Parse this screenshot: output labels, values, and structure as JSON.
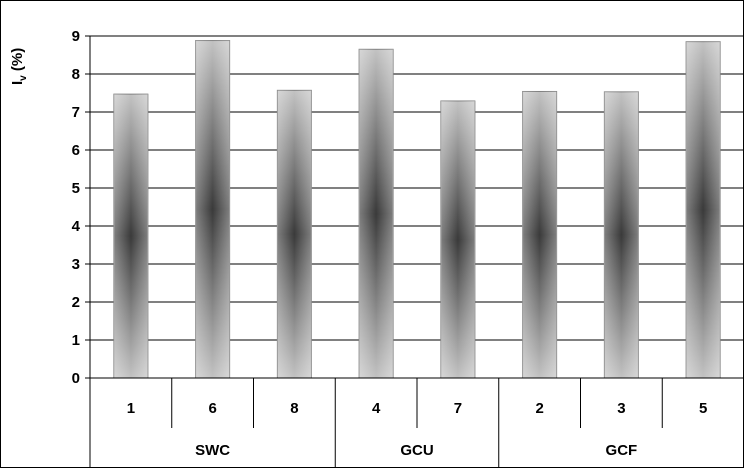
{
  "chart_data": {
    "type": "bar",
    "ylabel": "I",
    "ylabel_subscript": "v",
    "ylabel_suffix": " (%)",
    "ylim": [
      0,
      9
    ],
    "yticks": [
      "0",
      "1",
      "2",
      "3",
      "4",
      "5",
      "6",
      "7",
      "8",
      "9"
    ],
    "grid": true,
    "legend": "none",
    "categories": [
      "1",
      "6",
      "8",
      "4",
      "7",
      "2",
      "3",
      "5"
    ],
    "values": [
      7.47,
      8.88,
      7.57,
      8.65,
      7.29,
      7.54,
      7.53,
      8.85
    ],
    "groups": [
      {
        "label": "SWC",
        "count": 3
      },
      {
        "label": "GCU",
        "count": 2
      },
      {
        "label": "GCF",
        "count": 3
      }
    ],
    "colors": {
      "bar_edge": "#7f7f7f",
      "bar_light": "#c2c2c2",
      "bar_dark": "#3a3a3a",
      "grid": "#000000",
      "axis": "#000000"
    }
  }
}
